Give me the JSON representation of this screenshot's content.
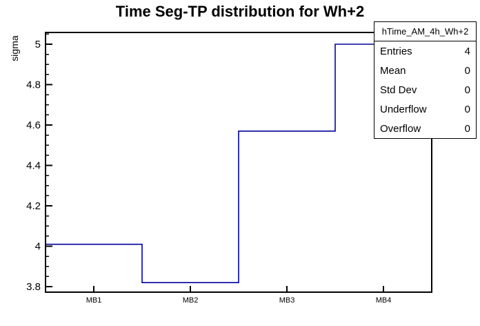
{
  "chart_data": {
    "type": "line",
    "style": "step-histogram",
    "title": "Time Seg-TP distribution for Wh+2",
    "xlabel": "",
    "ylabel": "sigma",
    "categories": [
      "MB1",
      "MB2",
      "MB3",
      "MB4"
    ],
    "values": [
      4.01,
      3.82,
      4.57,
      5.0
    ],
    "ylim": [
      3.773,
      5.058
    ],
    "y_major_ticks": [
      "3.8",
      "4",
      "4.2",
      "4.4",
      "4.6",
      "4.8",
      "5"
    ],
    "y_minor_tick_step": 0.05,
    "grid": false,
    "legend": false,
    "line_color": "#00009a",
    "frame_color": "#000000",
    "background_color": "#ffffff"
  },
  "stats_box": {
    "header": "hTime_AM_4h_Wh+2",
    "rows": [
      {
        "label": "Entries",
        "value": "4"
      },
      {
        "label": "Mean",
        "value": "0"
      },
      {
        "label": "Std Dev",
        "value": "0"
      },
      {
        "label": "Underflow",
        "value": "0"
      },
      {
        "label": "Overflow",
        "value": "0"
      }
    ]
  }
}
